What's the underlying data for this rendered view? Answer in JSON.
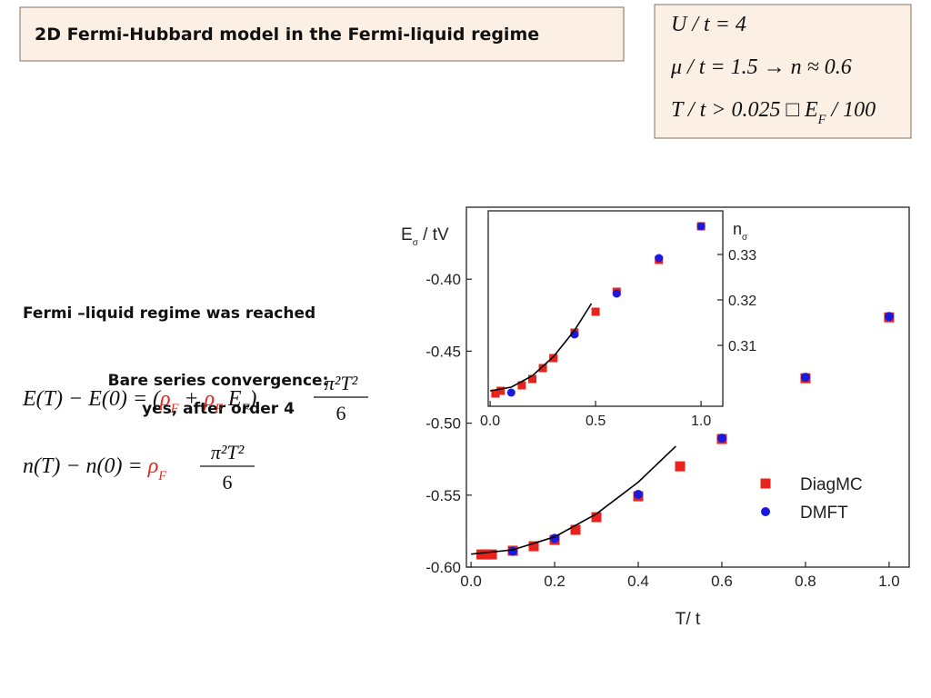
{
  "title": "2D Fermi-Hubbard model in the Fermi-liquid regime",
  "params": [
    [
      {
        "t": "U / t = 4"
      }
    ],
    [
      {
        "t": "μ / t = 1.5  → n ≈ 0.6"
      }
    ],
    [
      {
        "t": "T / t > 0.025 □ E"
      },
      {
        "sub": "F"
      },
      {
        "t": " / 100"
      }
    ]
  ],
  "notes": [
    "Fermi –liquid regime was reached",
    "Bare series convergence:",
    "yes, after order 4"
  ],
  "equations": [
    {
      "parts": [
        {
          "t": "E(T) − E(0) = ("
        },
        {
          "t": "ρ",
          "color": "#e8221d"
        },
        {
          "sub": "F",
          "color": "#e8221d"
        },
        {
          "t": " + "
        },
        {
          "t": "ρ",
          "color": "#e8221d"
        },
        {
          "sub": "F",
          "color": "#e8221d"
        },
        {
          "t": " E"
        },
        {
          "sub": "F"
        },
        {
          "t": ")"
        }
      ],
      "num": "π²T²",
      "den": "6"
    },
    {
      "parts": [
        {
          "t": "n(T) − n(0) = "
        },
        {
          "t": "ρ",
          "color": "#e8221d"
        },
        {
          "sub": "F",
          "color": "#e8221d"
        }
      ],
      "num": "π²T²",
      "den": "6"
    }
  ],
  "chart_data": [
    {
      "type": "scatter",
      "ylabel": "E",
      "ylabel_sub": "σ",
      "ylabel_after": " / tV",
      "xlabel": "T/ t",
      "xlim": [
        -0.011,
        1.048
      ],
      "ylim": [
        -0.6,
        -0.35
      ],
      "xticks": [
        {
          "value": 0,
          "label": "0.0"
        },
        0.2,
        0.4,
        0.6,
        0.8,
        {
          "value": 1,
          "label": "1.0"
        }
      ],
      "yticks": [
        {
          "value": -0.6,
          "label": "-0.60"
        },
        -0.55,
        {
          "value": -0.5,
          "label": "-0.50"
        },
        -0.45,
        {
          "value": -0.4,
          "label": "-0.40"
        }
      ],
      "yaxis_side": "left",
      "legend": "right",
      "series": [
        {
          "name": "DiagMC",
          "color": "#e8221d",
          "marker": "square",
          "x": [
            0.025,
            0.033,
            0.05,
            0.1,
            0.15,
            0.2,
            0.25,
            0.3,
            0.4,
            0.5,
            0.6,
            0.8,
            1.0
          ],
          "values": [
            -0.5912,
            -0.5912,
            -0.5912,
            -0.5886,
            -0.5855,
            -0.5811,
            -0.5741,
            -0.5653,
            -0.5508,
            -0.53,
            -0.511,
            -0.4688,
            -0.4265
          ]
        },
        {
          "name": "DMFT",
          "color": "#1a1adb",
          "marker": "circle",
          "x": [
            0.1,
            0.2,
            0.4,
            0.6,
            0.8,
            1.0
          ],
          "values": [
            -0.589,
            -0.58,
            -0.5495,
            -0.5104,
            -0.4681,
            -0.4259
          ]
        },
        {
          "color": "#000000",
          "marker": "line",
          "x": [
            0,
            0.1,
            0.2,
            0.3,
            0.4,
            0.49
          ],
          "values": [
            -0.591,
            -0.588,
            -0.579,
            -0.563,
            -0.541,
            -0.516
          ]
        }
      ]
    },
    {
      "type": "scatter",
      "ylabel": "n",
      "ylabel_sub": "σ",
      "xlim": [
        -0.009,
        1.103
      ],
      "ylim": [
        0.2966,
        0.3396
      ],
      "xticks": [
        {
          "value": 0,
          "label": "0.0"
        },
        0.5,
        {
          "value": 1,
          "label": "1.0"
        }
      ],
      "yticks": [
        0.31,
        0.32,
        0.33
      ],
      "yaxis_side": "right",
      "series": [
        {
          "color": "#e8221d",
          "marker": "square",
          "x": [
            0.025,
            0.05,
            0.15,
            0.2,
            0.25,
            0.3,
            0.4,
            0.5,
            0.6,
            0.8,
            1.0
          ],
          "values": [
            0.2994,
            0.3,
            0.3012,
            0.3026,
            0.305,
            0.3072,
            0.3128,
            0.3174,
            0.3218,
            0.3288,
            0.3362
          ]
        },
        {
          "color": "#1a1adb",
          "marker": "circle",
          "x": [
            0.1,
            0.4,
            0.6,
            0.8,
            1.0
          ],
          "values": [
            0.2996,
            0.3124,
            0.3214,
            0.3292,
            0.3362
          ]
        },
        {
          "color": "#000000",
          "marker": "line",
          "x": [
            0,
            0.1,
            0.2,
            0.3,
            0.4,
            0.48
          ],
          "values": [
            0.3,
            0.3008,
            0.3033,
            0.3075,
            0.3133,
            0.3192
          ]
        }
      ]
    }
  ]
}
